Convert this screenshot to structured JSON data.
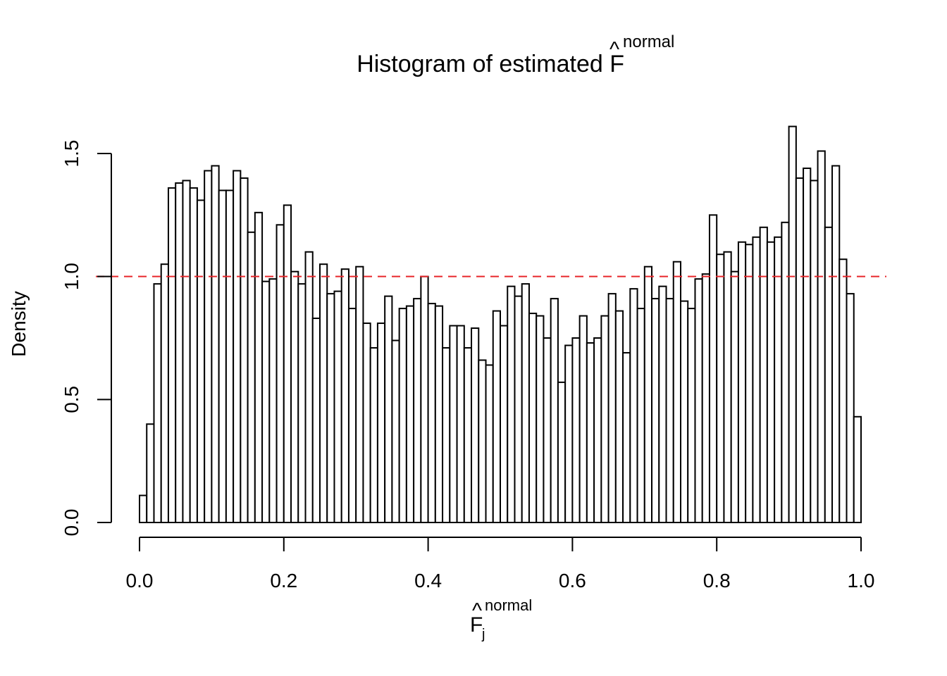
{
  "chart_data": {
    "type": "bar",
    "title": {
      "text": "Histogram of estimated F",
      "hat": "^",
      "superscript": "normal"
    },
    "xlabel": {
      "text": "F",
      "hat": "^",
      "subscript": "j",
      "superscript": "normal"
    },
    "ylabel": "Density",
    "xlim": [
      0.0,
      1.0
    ],
    "ylim": [
      0.0,
      1.5
    ],
    "xticks": [
      "0.0",
      "0.2",
      "0.4",
      "0.6",
      "0.8",
      "1.0"
    ],
    "yticks": [
      "0.0",
      "0.5",
      "1.0",
      "1.5"
    ],
    "bin_width": 0.01,
    "bin_start": 0.0,
    "values": [
      0.11,
      0.4,
      0.97,
      1.05,
      1.36,
      1.38,
      1.39,
      1.36,
      1.31,
      1.43,
      1.45,
      1.35,
      1.35,
      1.43,
      1.4,
      1.18,
      1.26,
      0.98,
      0.99,
      1.21,
      1.29,
      1.02,
      0.97,
      1.1,
      0.83,
      1.05,
      0.93,
      0.94,
      1.03,
      0.87,
      1.04,
      0.81,
      0.71,
      0.81,
      0.92,
      0.74,
      0.87,
      0.88,
      0.91,
      1.0,
      0.89,
      0.88,
      0.71,
      0.8,
      0.8,
      0.71,
      0.79,
      0.66,
      0.64,
      0.86,
      0.8,
      0.96,
      0.92,
      0.97,
      0.85,
      0.84,
      0.75,
      0.91,
      0.57,
      0.72,
      0.75,
      0.84,
      0.73,
      0.75,
      0.84,
      0.93,
      0.86,
      0.69,
      0.95,
      0.87,
      1.04,
      0.91,
      0.96,
      0.91,
      1.06,
      0.9,
      0.87,
      0.99,
      1.01,
      1.25,
      1.09,
      1.1,
      1.02,
      1.14,
      1.13,
      1.16,
      1.2,
      1.14,
      1.16,
      1.22,
      1.61,
      1.4,
      1.44,
      1.39,
      1.51,
      1.2,
      1.45,
      1.07,
      0.93,
      0.43
    ],
    "reference_line": {
      "y": 1.0,
      "style": "dashed",
      "color": "#e8262b"
    },
    "colors": {
      "bar_fill": "#ffffff",
      "bar_stroke": "#000000"
    },
    "grid": false
  }
}
